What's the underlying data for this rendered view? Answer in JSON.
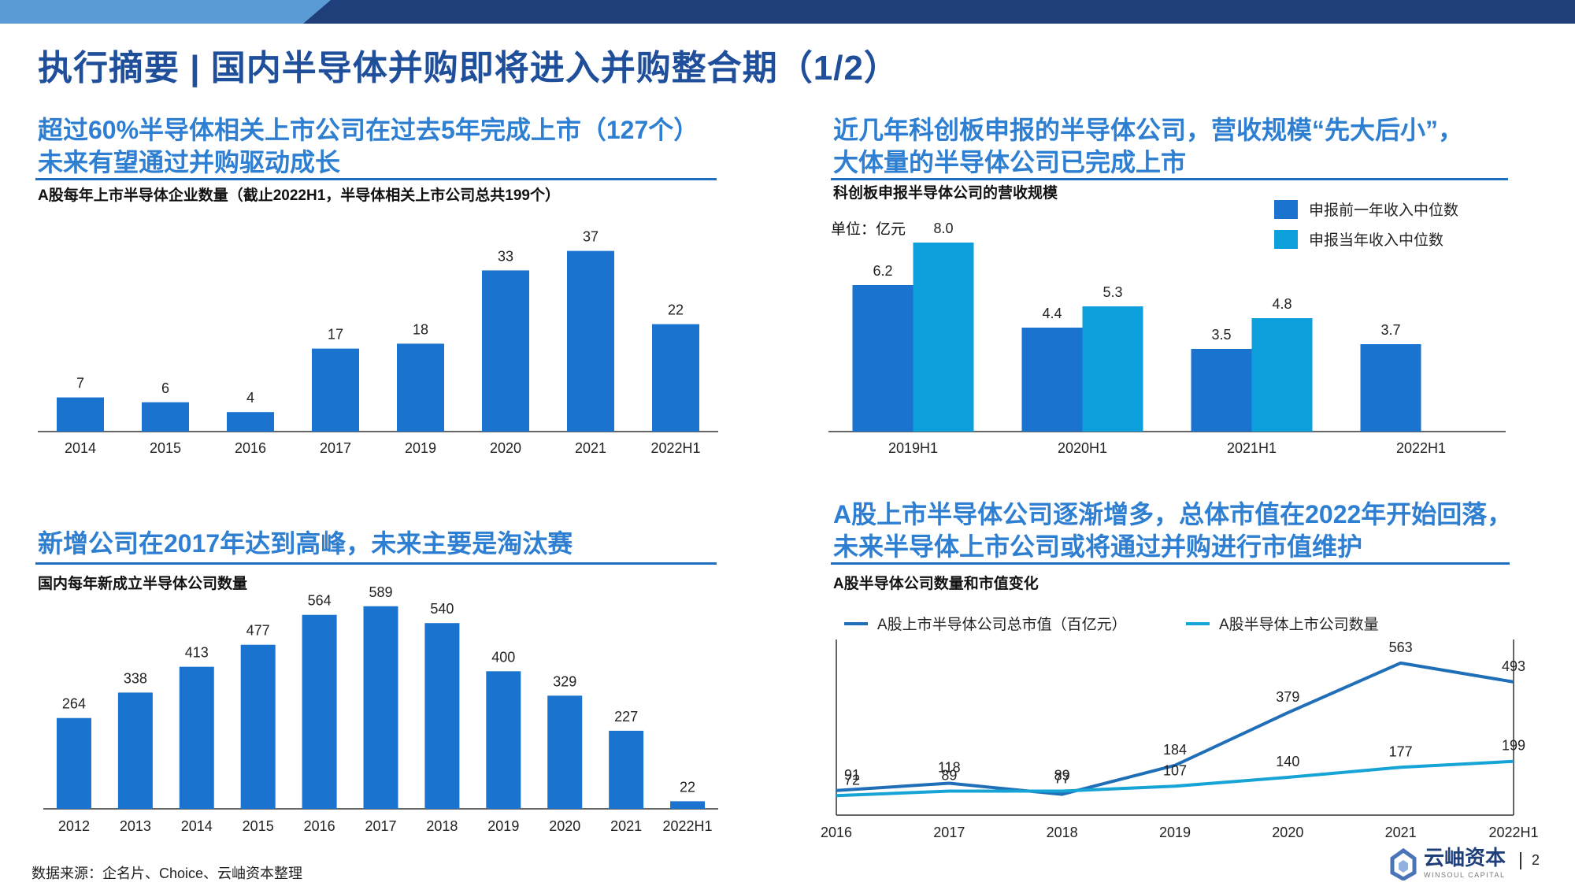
{
  "title": "执行摘要 | 国内半导体并购即将进入并购整合期（1/2）",
  "colors": {
    "bar_blue": "#1a73cf",
    "bar_cyan": "#0ea0dc",
    "line_dark": "#1f6fb8",
    "line_cyan": "#16a3d6",
    "heading": "#2e7fd1",
    "title": "#1f4e9a"
  },
  "panels": {
    "tl": {
      "heading1": "超过60%半导体相关上市公司在过去5年完成上市（127个）",
      "heading2": "未来有望通过并购驱动成长",
      "subtitle": "A股每年上市半导体企业数量（截止2022H1，半导体相关上市公司总共199个）"
    },
    "tr": {
      "heading1": "近几年科创板申报的半导体公司，营收规模“先大后小”，",
      "heading2": "大体量的半导体公司已完成上市",
      "subtitle": "科创板申报半导体公司的营收规模",
      "unit": "单位：亿元"
    },
    "bl": {
      "heading1": "新增公司在2017年达到高峰，未来主要是淘汰赛",
      "subtitle": "国内每年新成立半导体公司数量"
    },
    "br": {
      "heading1": "A股上市半导体公司逐渐增多，总体市值在2022年开始回落，",
      "heading2": "未来半导体上市公司或将通过并购进行市值维护",
      "subtitle": "A股半导体公司数量和市值变化"
    }
  },
  "chart_data": [
    {
      "type": "bar",
      "categories": [
        "2014",
        "2015",
        "2016",
        "2017",
        "2019",
        "2020",
        "2021",
        "2022H1"
      ],
      "values": [
        7,
        6,
        4,
        17,
        18,
        33,
        37,
        22
      ],
      "title": "A股每年上市半导体企业数量（截止2022H1，半导体相关上市公司总共199个）",
      "ylim": [
        0,
        40
      ]
    },
    {
      "type": "bar",
      "categories": [
        "2019H1",
        "2020H1",
        "2021H1",
        "2022H1"
      ],
      "series": [
        {
          "name": "申报前一年收入中位数",
          "values": [
            6.2,
            4.4,
            3.5,
            3.7
          ]
        },
        {
          "name": "申报当年收入中位数",
          "values": [
            8.0,
            5.3,
            4.8,
            null
          ]
        }
      ],
      "title": "科创板申报半导体公司的营收规模",
      "ylabel": "单位：亿元",
      "ylim": [
        0,
        9
      ],
      "legend": "top-right"
    },
    {
      "type": "bar",
      "categories": [
        "2012",
        "2013",
        "2014",
        "2015",
        "2016",
        "2017",
        "2018",
        "2019",
        "2020",
        "2021",
        "2022H1"
      ],
      "values": [
        264,
        338,
        413,
        477,
        564,
        589,
        540,
        400,
        329,
        227,
        22
      ],
      "title": "国内每年新成立半导体公司数量",
      "ylim": [
        0,
        650
      ]
    },
    {
      "type": "line",
      "categories": [
        "2016",
        "2017",
        "2018",
        "2019",
        "2020",
        "2021",
        "2022H1"
      ],
      "series": [
        {
          "name": "A股上市半导体公司总市值（百亿元）",
          "values": [
            91,
            118,
            77,
            184,
            379,
            563,
            493
          ]
        },
        {
          "name": "A股半导体上市公司数量",
          "values": [
            72,
            89,
            89,
            107,
            140,
            177,
            199
          ]
        }
      ],
      "title": "A股半导体公司数量和市值变化",
      "legend": "top"
    }
  ],
  "source": "数据来源：企名片、Choice、云岫资本整理",
  "logo": {
    "name": "云岫资本",
    "en": "WINSOUL CAPITAL"
  },
  "page_number": "2"
}
